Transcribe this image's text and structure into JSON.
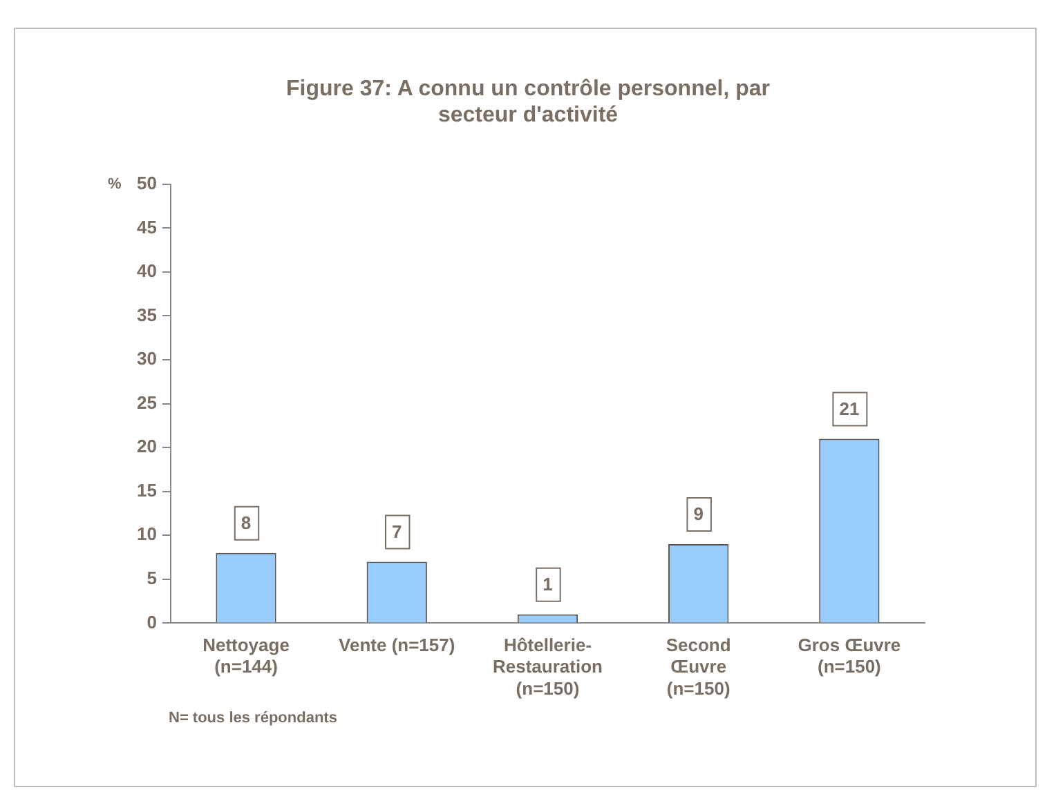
{
  "chart_data": {
    "type": "bar",
    "title": "Figure 37: A connu un contrôle personnel, par secteur d'activité",
    "ylabel": "%",
    "categories": [
      "Nettoyage\n(n=144)",
      "Vente (n=157)",
      "Hôtellerie-\nRestauration\n(n=150)",
      "Second\nŒuvre\n(n=150)",
      "Gros Œuvre\n(n=150)"
    ],
    "values": [
      8,
      7,
      1,
      9,
      21
    ],
    "color": "#99ccff",
    "ylim": [
      0,
      50
    ],
    "yticks": [
      0,
      5,
      10,
      15,
      20,
      25,
      30,
      35,
      40,
      45,
      50
    ],
    "grid": false,
    "legend": false,
    "data_labels": true,
    "annotations": [
      "N= tous les répondants"
    ]
  }
}
